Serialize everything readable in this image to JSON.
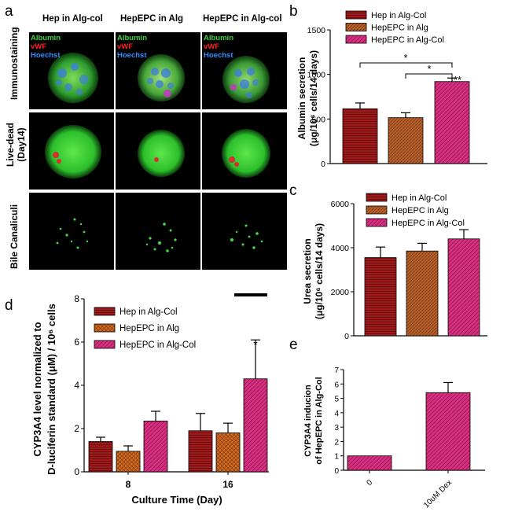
{
  "panels": {
    "a": "a",
    "b": "b",
    "c": "c",
    "d": "d",
    "e": "e"
  },
  "micrographs": {
    "columns": [
      "Hep in Alg-col",
      "HepEPC in Alg",
      "HepEPC in Alg-col"
    ],
    "rows": [
      {
        "label": "Immunostaining",
        "label2": ""
      },
      {
        "label": "Live-dead",
        "label2": "(Day14)"
      },
      {
        "label": "Bile Canaliculi",
        "label2": ""
      }
    ],
    "stain_labels": [
      "Albumin",
      "vWF",
      "Hoechst"
    ],
    "stain_colors": [
      "#3fd23f",
      "#ff2020",
      "#2f8fff"
    ]
  },
  "chart_data": [
    {
      "id": "b",
      "type": "bar",
      "categories": [
        "Hep in Alg-Col",
        "HepEPC in Alg",
        "HepEPC in Alg-Col"
      ],
      "values": [
        615,
        515,
        920
      ],
      "errors": [
        65,
        55,
        40
      ],
      "colors": [
        "#a01c1c",
        "#b8602a",
        "#d62f7f"
      ],
      "ylabel_line1": "Albumin secretion",
      "ylabel_line2": "(μg/10⁶ cells/14 days)",
      "ylim": [
        0,
        1500
      ],
      "yticks": [
        0,
        500,
        1000,
        1500
      ],
      "legend": [
        "Hep in Alg-Col",
        "HepEPC in Alg",
        "HepEPC in Alg-Col"
      ],
      "legend_position": "top",
      "annotations": [
        "*",
        "*",
        "**"
      ]
    },
    {
      "id": "c",
      "type": "bar",
      "categories": [
        "Hep in Alg-Col",
        "HepEPC in Alg",
        "HepEPC in Alg-Col"
      ],
      "values": [
        3550,
        3850,
        4400
      ],
      "errors": [
        480,
        350,
        420
      ],
      "colors": [
        "#a01c1c",
        "#b8602a",
        "#d62f7f"
      ],
      "ylabel_line1": "Urea secretion",
      "ylabel_line2": "(μg/10⁶ cells/14 days)",
      "ylim": [
        0,
        6000
      ],
      "yticks": [
        0,
        2000,
        4000,
        6000
      ],
      "legend": [
        "Hep in Alg-Col",
        "HepEPC in Alg",
        "HepEPC in Alg-Col"
      ],
      "legend_position": "top"
    },
    {
      "id": "d",
      "type": "bar",
      "categories": [
        "8",
        "16"
      ],
      "series": [
        {
          "name": "Hep in Alg-Col",
          "values": [
            1.4,
            1.9
          ],
          "errors": [
            0.2,
            0.8
          ],
          "color": "#a01c1c"
        },
        {
          "name": "HepEPC in Alg",
          "values": [
            0.95,
            1.8
          ],
          "errors": [
            0.25,
            0.45
          ],
          "color": "#d66a20"
        },
        {
          "name": "HepEPC in Alg-Col",
          "values": [
            2.35,
            4.3
          ],
          "errors": [
            0.45,
            1.8
          ],
          "color": "#d62f7f"
        }
      ],
      "xlabel": "Culture Time (Day)",
      "ylabel_line1": "CYP3A4 level normalized to",
      "ylabel_line2": "D-luciferin standard (μM) / 10⁶ cells",
      "ylim": [
        0,
        8
      ],
      "yticks": [
        0,
        2,
        4,
        6,
        8
      ],
      "legend_position": "top-left",
      "annotations": [
        "*"
      ]
    },
    {
      "id": "e",
      "type": "bar",
      "categories": [
        "0",
        "10uM Dex"
      ],
      "values": [
        1.0,
        5.4
      ],
      "errors": [
        0,
        0.7
      ],
      "colors": [
        "#d62f7f",
        "#d62f7f"
      ],
      "ylabel_line1": "CYP3A4 inducion",
      "ylabel_line2": "of HepEPC in  Alg-Col",
      "ylim": [
        0,
        7
      ],
      "yticks": [
        0,
        1,
        2,
        3,
        4,
        5,
        6,
        7
      ]
    }
  ]
}
